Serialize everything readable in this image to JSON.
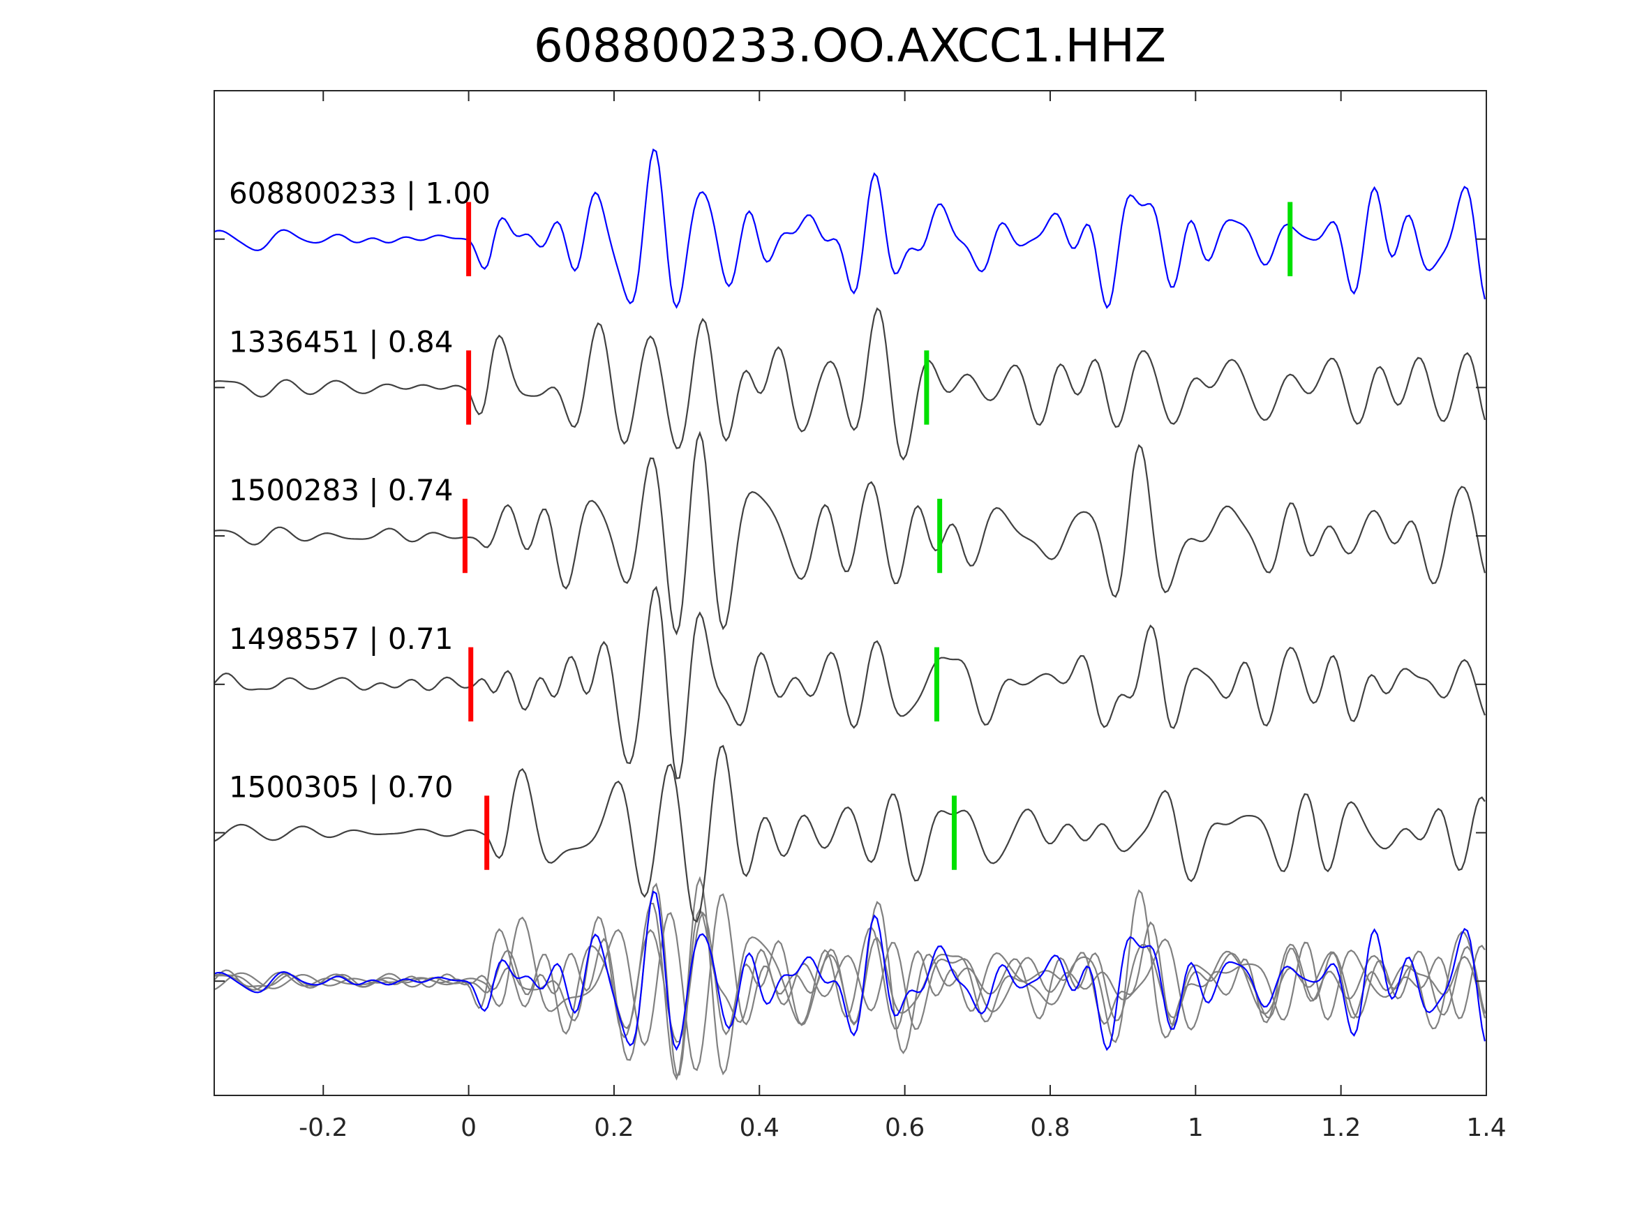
{
  "chart_data": {
    "type": "line",
    "title": "608800233.OO.AXCC1.HHZ",
    "xlabel": "",
    "ylabel": "",
    "xlim": [
      -0.35,
      1.4
    ],
    "xticks": [
      -0.2,
      0,
      0.2,
      0.4,
      0.6,
      0.8,
      1,
      1.2,
      1.4
    ],
    "xtick_labels": [
      "-0.2",
      "0",
      "0.2",
      "0.4",
      "0.6",
      "0.8",
      "1",
      "1.2",
      "1.4"
    ],
    "ylim": [
      -0.77,
      6
    ],
    "grid": false,
    "traces": [
      {
        "label": "608800233 | 1.00",
        "offset": 5,
        "color": "#0000ff",
        "red_pick": 0.0,
        "green_pick": 1.13,
        "seed": 11
      },
      {
        "label": "1336451 | 0.84",
        "offset": 4,
        "color": "#404040",
        "red_pick": 0.0,
        "green_pick": 0.63,
        "seed": 23
      },
      {
        "label": "1500283 | 0.74",
        "offset": 3,
        "color": "#404040",
        "red_pick": -0.005,
        "green_pick": 0.648,
        "seed": 37
      },
      {
        "label": "1498557 | 0.71",
        "offset": 2,
        "color": "#404040",
        "red_pick": 0.003,
        "green_pick": 0.644,
        "seed": 41
      },
      {
        "label": "1500305 | 0.70",
        "offset": 1,
        "color": "#404040",
        "red_pick": 0.025,
        "green_pick": 0.668,
        "seed": 53
      }
    ],
    "stack": {
      "offset": 0,
      "reference_color": "#0000ff",
      "other_color": "#808080"
    },
    "pick_colors": {
      "red": "#ff0000",
      "green": "#00e000"
    }
  }
}
